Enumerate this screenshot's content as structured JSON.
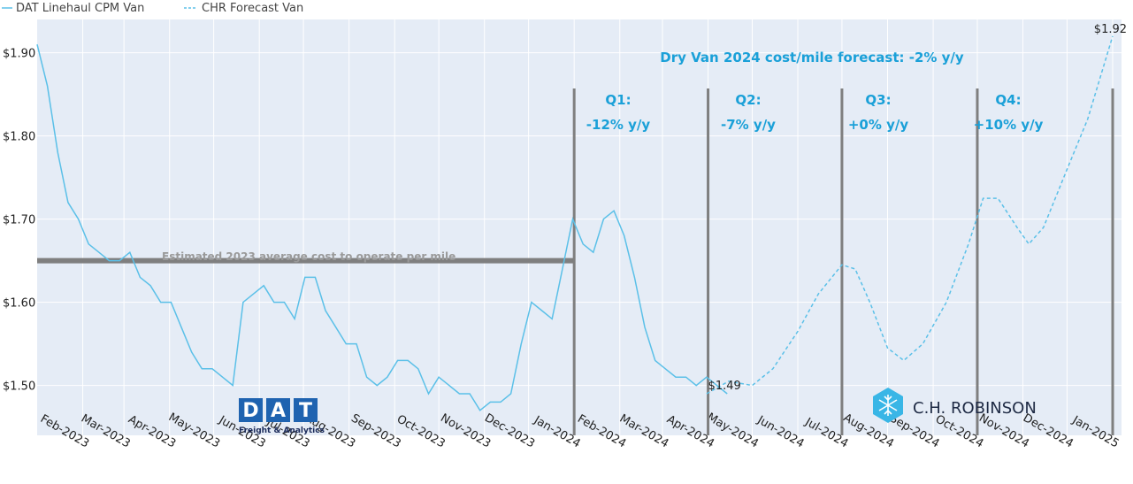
{
  "legend": [
    {
      "name": "DAT Linehaul CPM Van",
      "style": "solid"
    },
    {
      "name": "CHR Forecast Van",
      "style": "dashed"
    }
  ],
  "headline": "Dry Van 2024 cost/mile forecast: -2% y/y",
  "average_line_label": "Estimated 2023 average cost to operate per mile",
  "quarters": [
    {
      "title": "Q1:",
      "change": "-12% y/y"
    },
    {
      "title": "Q2:",
      "change": "-7% y/y"
    },
    {
      "title": "Q3:",
      "change": "+0% y/y"
    },
    {
      "title": "Q4:",
      "change": "+10% y/y"
    }
  ],
  "logos": {
    "dat_text": "DAT",
    "dat_sub": "Freight & Analytics",
    "chr_text": "C.H. ROBINSON"
  },
  "colors": {
    "series": "#5bc0e8",
    "accent": "#1aa0d8",
    "plot_bg": "#e5ecf6",
    "avg_line": "#7f7f7f",
    "dat_blue": "#1f63b0"
  },
  "chart_data": {
    "type": "line",
    "ylim": [
      1.44,
      1.94
    ],
    "y_ticks": [
      {
        "value": 1.5,
        "label": "$1.50"
      },
      {
        "value": 1.6,
        "label": "$1.60"
      },
      {
        "value": 1.7,
        "label": "$1.70"
      },
      {
        "value": 1.8,
        "label": "$1.80"
      },
      {
        "value": 1.9,
        "label": "$1.90"
      }
    ],
    "x_range": [
      "2023-01-01",
      "2025-01-07"
    ],
    "x_ticks": [
      {
        "date": "2023-02-01",
        "label": "Feb-2023"
      },
      {
        "date": "2023-03-01",
        "label": "Mar-2023"
      },
      {
        "date": "2023-04-01",
        "label": "Apr-2023"
      },
      {
        "date": "2023-05-01",
        "label": "May-2023"
      },
      {
        "date": "2023-06-01",
        "label": "Jun-2023"
      },
      {
        "date": "2023-07-01",
        "label": "Jul-2023"
      },
      {
        "date": "2023-08-01",
        "label": "Aug-2023"
      },
      {
        "date": "2023-09-01",
        "label": "Sep-2023"
      },
      {
        "date": "2023-10-01",
        "label": "Oct-2023"
      },
      {
        "date": "2023-11-01",
        "label": "Nov-2023"
      },
      {
        "date": "2023-12-01",
        "label": "Dec-2023"
      },
      {
        "date": "2024-01-01",
        "label": "Jan-2024"
      },
      {
        "date": "2024-02-01",
        "label": "Feb-2024"
      },
      {
        "date": "2024-03-01",
        "label": "Mar-2024"
      },
      {
        "date": "2024-04-01",
        "label": "Apr-2024"
      },
      {
        "date": "2024-05-01",
        "label": "May-2024"
      },
      {
        "date": "2024-06-01",
        "label": "Jun-2024"
      },
      {
        "date": "2024-07-01",
        "label": "Jul-2024"
      },
      {
        "date": "2024-08-01",
        "label": "Aug-2024"
      },
      {
        "date": "2024-09-01",
        "label": "Sep-2024"
      },
      {
        "date": "2024-10-01",
        "label": "Oct-2024"
      },
      {
        "date": "2024-11-01",
        "label": "Nov-2024"
      },
      {
        "date": "2024-12-01",
        "label": "Dec-2024"
      },
      {
        "date": "2025-01-01",
        "label": "Jan-2025"
      }
    ],
    "quarter_dividers": [
      "2024-01-01",
      "2024-04-01",
      "2024-07-01",
      "2024-10-01",
      "2025-01-01"
    ],
    "average_cost": 1.65,
    "average_line_x": [
      "2023-01-01",
      "2024-01-01"
    ],
    "series": [
      {
        "name": "DAT Linehaul CPM Van",
        "style": "solid",
        "points": [
          [
            "2023-01-01",
            1.91
          ],
          [
            "2023-01-08",
            1.86
          ],
          [
            "2023-01-15",
            1.78
          ],
          [
            "2023-01-22",
            1.72
          ],
          [
            "2023-01-29",
            1.7
          ],
          [
            "2023-02-05",
            1.67
          ],
          [
            "2023-02-12",
            1.66
          ],
          [
            "2023-02-19",
            1.65
          ],
          [
            "2023-02-26",
            1.65
          ],
          [
            "2023-03-05",
            1.66
          ],
          [
            "2023-03-12",
            1.63
          ],
          [
            "2023-03-19",
            1.62
          ],
          [
            "2023-03-26",
            1.6
          ],
          [
            "2023-04-02",
            1.6
          ],
          [
            "2023-04-09",
            1.57
          ],
          [
            "2023-04-16",
            1.54
          ],
          [
            "2023-04-23",
            1.52
          ],
          [
            "2023-04-30",
            1.52
          ],
          [
            "2023-05-07",
            1.51
          ],
          [
            "2023-05-14",
            1.5
          ],
          [
            "2023-05-21",
            1.6
          ],
          [
            "2023-05-28",
            1.61
          ],
          [
            "2023-06-04",
            1.62
          ],
          [
            "2023-06-11",
            1.6
          ],
          [
            "2023-06-18",
            1.6
          ],
          [
            "2023-06-25",
            1.58
          ],
          [
            "2023-07-02",
            1.63
          ],
          [
            "2023-07-09",
            1.63
          ],
          [
            "2023-07-16",
            1.59
          ],
          [
            "2023-07-23",
            1.57
          ],
          [
            "2023-07-30",
            1.55
          ],
          [
            "2023-08-06",
            1.55
          ],
          [
            "2023-08-13",
            1.51
          ],
          [
            "2023-08-20",
            1.5
          ],
          [
            "2023-08-27",
            1.51
          ],
          [
            "2023-09-03",
            1.53
          ],
          [
            "2023-09-10",
            1.53
          ],
          [
            "2023-09-17",
            1.52
          ],
          [
            "2023-09-24",
            1.49
          ],
          [
            "2023-10-01",
            1.51
          ],
          [
            "2023-10-08",
            1.5
          ],
          [
            "2023-10-15",
            1.49
          ],
          [
            "2023-10-22",
            1.49
          ],
          [
            "2023-10-29",
            1.47
          ],
          [
            "2023-11-05",
            1.48
          ],
          [
            "2023-11-12",
            1.48
          ],
          [
            "2023-11-19",
            1.49
          ],
          [
            "2023-11-26",
            1.55
          ],
          [
            "2023-12-03",
            1.6
          ],
          [
            "2023-12-10",
            1.59
          ],
          [
            "2023-12-17",
            1.58
          ],
          [
            "2023-12-24",
            1.64
          ],
          [
            "2023-12-31",
            1.7
          ],
          [
            "2024-01-07",
            1.67
          ],
          [
            "2024-01-14",
            1.66
          ],
          [
            "2024-01-21",
            1.7
          ],
          [
            "2024-01-28",
            1.71
          ],
          [
            "2024-02-04",
            1.68
          ],
          [
            "2024-02-11",
            1.63
          ],
          [
            "2024-02-18",
            1.57
          ],
          [
            "2024-02-25",
            1.53
          ],
          [
            "2024-03-03",
            1.52
          ],
          [
            "2024-03-10",
            1.51
          ],
          [
            "2024-03-17",
            1.51
          ],
          [
            "2024-03-24",
            1.5
          ],
          [
            "2024-03-31",
            1.51
          ],
          [
            "2024-04-07",
            1.5
          ],
          [
            "2024-04-14",
            1.49
          ]
        ]
      },
      {
        "name": "CHR Forecast Van",
        "style": "dashed",
        "points": [
          [
            "2024-03-31",
            1.49
          ],
          [
            "2024-04-15",
            1.505
          ],
          [
            "2024-05-01",
            1.5
          ],
          [
            "2024-05-15",
            1.52
          ],
          [
            "2024-06-01",
            1.565
          ],
          [
            "2024-06-15",
            1.61
          ],
          [
            "2024-07-01",
            1.645
          ],
          [
            "2024-07-10",
            1.64
          ],
          [
            "2024-07-20",
            1.6
          ],
          [
            "2024-08-01",
            1.545
          ],
          [
            "2024-08-12",
            1.53
          ],
          [
            "2024-08-25",
            1.55
          ],
          [
            "2024-09-10",
            1.6
          ],
          [
            "2024-09-25",
            1.67
          ],
          [
            "2024-10-05",
            1.725
          ],
          [
            "2024-10-15",
            1.725
          ],
          [
            "2024-10-28",
            1.69
          ],
          [
            "2024-11-05",
            1.67
          ],
          [
            "2024-11-15",
            1.69
          ],
          [
            "2024-12-01",
            1.76
          ],
          [
            "2024-12-15",
            1.82
          ],
          [
            "2025-01-01",
            1.92
          ]
        ]
      }
    ],
    "point_labels": [
      {
        "date": "2024-04-01",
        "value": 1.49,
        "label": "$1.49"
      },
      {
        "date": "2025-01-01",
        "value": 1.92,
        "label": "$1.92"
      }
    ]
  }
}
